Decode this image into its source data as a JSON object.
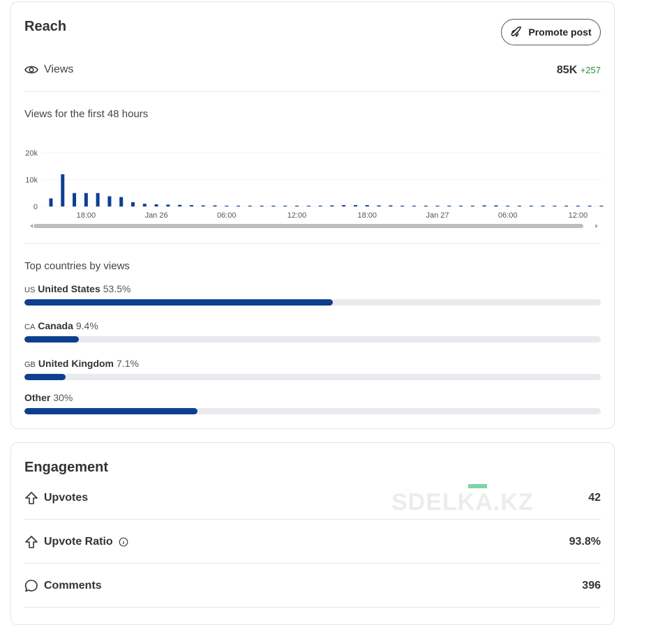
{
  "reach": {
    "title": "Reach",
    "promote_button": "Promote post",
    "views_label": "Views",
    "views_value": "85K",
    "views_delta": "+257"
  },
  "chart_data": {
    "type": "bar",
    "title": "Views for the first 48 hours",
    "categories": [
      null,
      null,
      null,
      "18:00",
      null,
      null,
      null,
      null,
      null,
      "Jan 26",
      null,
      null,
      null,
      null,
      null,
      "06:00",
      null,
      null,
      null,
      null,
      null,
      "12:00",
      null,
      null,
      null,
      null,
      null,
      "18:00",
      null,
      null,
      null,
      null,
      null,
      "Jan 27",
      null,
      null,
      null,
      null,
      null,
      "06:00",
      null,
      null,
      null,
      null,
      null,
      "12:00",
      null,
      null
    ],
    "values": [
      3000,
      12000,
      5000,
      5000,
      5000,
      3800,
      3500,
      1600,
      1000,
      800,
      700,
      600,
      500,
      400,
      400,
      300,
      300,
      300,
      300,
      300,
      300,
      300,
      300,
      300,
      400,
      500,
      500,
      500,
      400,
      400,
      300,
      300,
      300,
      300,
      300,
      300,
      300,
      400,
      400,
      300,
      300,
      300,
      300,
      300,
      300,
      300,
      300,
      300
    ],
    "color": "#0e3f8f",
    "ylim": [
      0,
      20000
    ],
    "yticks": [
      0,
      {
        "value": 10000,
        "label": "10k"
      },
      {
        "value": 20000,
        "label": "20k"
      }
    ],
    "grid": true
  },
  "countries": {
    "title": "Top countries by views",
    "xlim": [
      0,
      100
    ],
    "color": "#0e3f8f",
    "items": [
      {
        "code": "US",
        "name": "United States",
        "value": 53.5,
        "value_label": "53.5%"
      },
      {
        "code": "CA",
        "name": "Canada",
        "value": 9.4,
        "value_label": "9.4%"
      },
      {
        "code": "GB",
        "name": "United Kingdom",
        "value": 7.1,
        "value_label": "7.1%"
      },
      {
        "name": "Other",
        "value": 30,
        "value_label": "30%"
      }
    ]
  },
  "engagement": {
    "title": "Engagement",
    "rows": [
      {
        "label": "Upvotes",
        "value": 42
      },
      {
        "label": "Upvote Ratio",
        "value": "93.8%"
      },
      {
        "label": "Comments",
        "value": 396
      }
    ]
  },
  "watermark": "SDELKA.KZ"
}
